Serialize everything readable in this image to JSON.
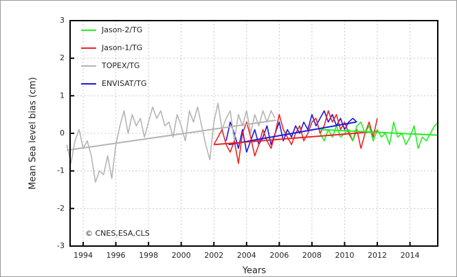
{
  "chart_data": {
    "type": "line",
    "xlabel": "Years",
    "ylabel": "Mean Sea level bias (cm)",
    "annotation": "© CNES,ESA,CLS",
    "xlim": [
      1993.2,
      2015.7
    ],
    "ylim": [
      -3,
      3
    ],
    "xticks": [
      1994,
      1996,
      1998,
      2000,
      2002,
      2004,
      2006,
      2008,
      2010,
      2012,
      2014
    ],
    "yticks": [
      -3,
      -2,
      -1,
      0,
      1,
      2,
      3
    ],
    "grid": true,
    "legend": "top-left",
    "series": [
      {
        "name": "Jason-2/TG",
        "color": "#22ee22",
        "x": [
          2008.5,
          2008.75,
          2009,
          2009.25,
          2009.5,
          2009.75,
          2010,
          2010.25,
          2010.5,
          2010.75,
          2011,
          2011.25,
          2011.5,
          2011.75,
          2012,
          2012.25,
          2012.5,
          2012.75,
          2013,
          2013.25,
          2013.5,
          2013.75,
          2014,
          2014.25,
          2014.5,
          2014.75,
          2015,
          2015.25,
          2015.5,
          2015.75
        ],
        "values": [
          0.0,
          -0.2,
          0.1,
          -0.1,
          0.2,
          -0.1,
          0.0,
          0.1,
          -0.2,
          0.2,
          0.3,
          0.0,
          0.2,
          -0.2,
          0.1,
          -0.1,
          0.0,
          -0.3,
          0.3,
          -0.1,
          0.0,
          -0.3,
          -0.1,
          0.2,
          -0.4,
          -0.1,
          -0.2,
          0.0,
          0.2,
          0.3
        ],
        "trend_x": [
          2008.5,
          2015.7
        ],
        "trend_values": [
          0.1,
          -0.05
        ]
      },
      {
        "name": "Jason-1/TG",
        "color": "#ee2222",
        "x": [
          2002,
          2002.25,
          2002.5,
          2002.75,
          2003,
          2003.25,
          2003.5,
          2003.75,
          2004,
          2004.25,
          2004.5,
          2004.75,
          2005,
          2005.25,
          2005.5,
          2005.75,
          2006,
          2006.25,
          2006.5,
          2006.75,
          2007,
          2007.25,
          2007.5,
          2007.75,
          2008,
          2008.25,
          2008.5,
          2008.75,
          2009,
          2009.25,
          2009.5,
          2009.75,
          2010,
          2010.25,
          2010.5,
          2010.75,
          2011,
          2011.25,
          2011.5,
          2011.75,
          2012
        ],
        "values": [
          -0.3,
          -0.1,
          0.1,
          -0.3,
          -0.5,
          -0.2,
          -0.8,
          0.0,
          0.3,
          -0.1,
          -0.6,
          -0.3,
          0.1,
          -0.2,
          -0.4,
          0.0,
          0.5,
          0.1,
          -0.1,
          -0.3,
          0.0,
          0.2,
          -0.2,
          0.0,
          0.3,
          0.4,
          0.0,
          0.2,
          0.6,
          0.3,
          0.5,
          0.1,
          0.3,
          0.0,
          -0.2,
          0.1,
          -0.4,
          0.0,
          0.3,
          -0.1,
          0.4
        ],
        "trend_x": [
          2002,
          2012
        ],
        "trend_values": [
          -0.3,
          0.05
        ]
      },
      {
        "name": "TOPEX/TG",
        "color": "#b4b4b4",
        "x": [
          1993,
          1993.25,
          1993.5,
          1993.75,
          1994,
          1994.25,
          1994.5,
          1994.75,
          1995,
          1995.25,
          1995.5,
          1995.75,
          1996,
          1996.25,
          1996.5,
          1996.75,
          1997,
          1997.25,
          1997.5,
          1997.75,
          1998,
          1998.25,
          1998.5,
          1998.75,
          1999,
          1999.25,
          1999.5,
          1999.75,
          2000,
          2000.25,
          2000.5,
          2000.75,
          2001,
          2001.25,
          2001.5,
          2001.75,
          2002,
          2002.25,
          2002.5,
          2002.75,
          2003,
          2003.25,
          2003.5,
          2003.75,
          2004,
          2004.25,
          2004.5,
          2004.75,
          2005,
          2005.25,
          2005.5,
          2005.75
        ],
        "values": [
          -0.3,
          -0.8,
          -0.2,
          0.1,
          -0.4,
          -0.2,
          -0.6,
          -1.3,
          -1.0,
          -1.1,
          -0.6,
          -1.2,
          -0.3,
          0.2,
          0.6,
          0.0,
          0.5,
          0.2,
          0.4,
          -0.1,
          0.3,
          0.7,
          0.4,
          0.6,
          0.2,
          0.3,
          -0.1,
          0.5,
          0.2,
          -0.2,
          0.6,
          0.3,
          0.7,
          0.2,
          -0.3,
          -0.7,
          0.3,
          0.8,
          0.1,
          0.4,
          0.6,
          -0.2,
          0.5,
          0.2,
          0.6,
          0.0,
          0.5,
          0.2,
          0.6,
          0.3,
          0.6,
          0.4
        ],
        "trend_x": [
          1993,
          2005.8
        ],
        "trend_values": [
          -0.45,
          0.35
        ]
      },
      {
        "name": "ENVISAT/TG",
        "color": "#1a1ad8",
        "x": [
          2002.75,
          2003,
          2003.25,
          2003.5,
          2003.75,
          2004,
          2004.25,
          2004.5,
          2004.75,
          2005,
          2005.25,
          2005.5,
          2005.75,
          2006,
          2006.25,
          2006.5,
          2006.75,
          2007,
          2007.25,
          2007.5,
          2007.75,
          2008,
          2008.25,
          2008.5,
          2008.75,
          2009,
          2009.25,
          2009.5,
          2009.75,
          2010,
          2010.25,
          2010.5,
          2010.75
        ],
        "values": [
          -0.2,
          0.3,
          0.0,
          -0.4,
          0.1,
          -0.5,
          -0.2,
          0.1,
          -0.3,
          -0.1,
          0.2,
          -0.3,
          0.0,
          0.3,
          -0.2,
          0.1,
          -0.1,
          0.2,
          0.0,
          0.3,
          0.1,
          0.5,
          0.2,
          0.4,
          0.6,
          0.3,
          0.5,
          0.2,
          0.4,
          0.1,
          0.3,
          0.4,
          0.3
        ],
        "trend_x": [
          2002.9,
          2010.7
        ],
        "trend_values": [
          -0.3,
          0.3
        ]
      }
    ]
  }
}
